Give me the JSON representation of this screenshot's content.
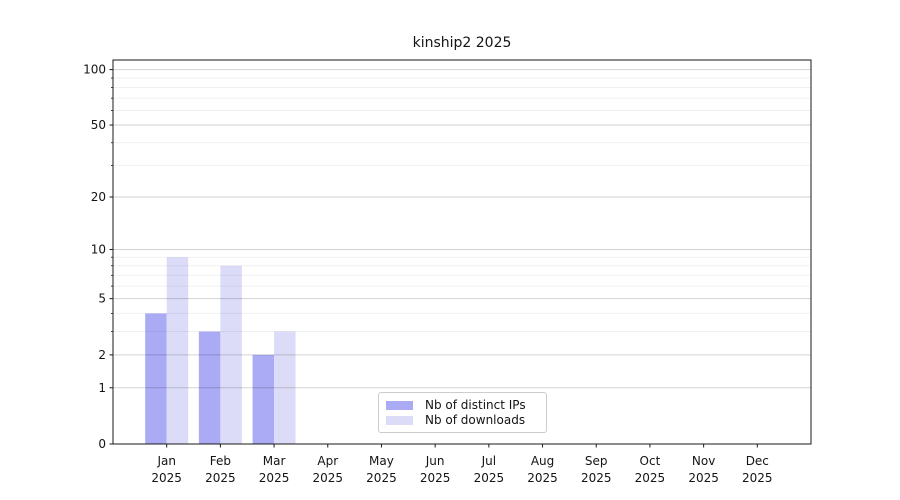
{
  "title": "kinship2 2025",
  "chart_data": {
    "type": "bar",
    "title": "kinship2 2025",
    "x_axis": {
      "months": [
        "Jan",
        "Feb",
        "Mar",
        "Apr",
        "May",
        "Jun",
        "Jul",
        "Aug",
        "Sep",
        "Oct",
        "Nov",
        "Dec"
      ],
      "year": "2025"
    },
    "y_axis": {
      "scale": "log1p",
      "major_ticks": [
        0,
        1,
        2,
        5,
        10,
        20,
        50,
        100
      ],
      "minor_gridlines": [
        3,
        4,
        6,
        7,
        8,
        9,
        30,
        40,
        60,
        70,
        80,
        90
      ],
      "ylim": [
        0,
        113
      ]
    },
    "series": [
      {
        "key": "distinct-ips",
        "name": "Nb of distinct IPs",
        "color": "#aaaaf5",
        "values": [
          4,
          3,
          2,
          0,
          0,
          0,
          0,
          0,
          0,
          0,
          0,
          0
        ]
      },
      {
        "key": "downloads",
        "name": "Nb of downloads",
        "color": "#dcdcf8",
        "values": [
          9,
          8,
          3,
          0,
          0,
          0,
          0,
          0,
          0,
          0,
          0,
          0
        ]
      }
    ],
    "grid": true,
    "legend_position": "bottom-center"
  }
}
